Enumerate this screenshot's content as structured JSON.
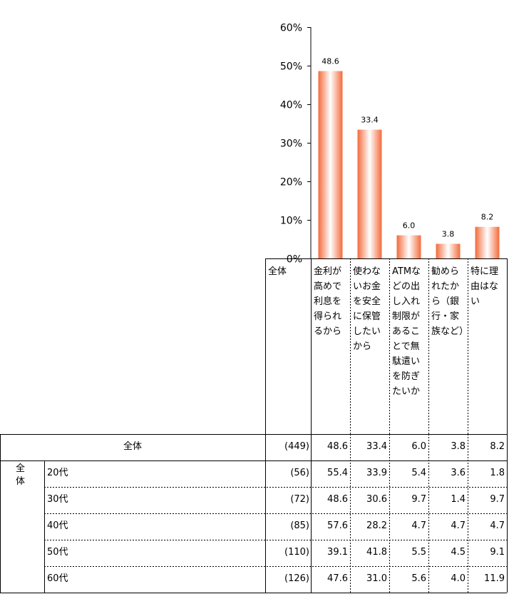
{
  "chart_data": {
    "type": "bar",
    "ylim": [
      0,
      60
    ],
    "y_ticks": [
      "0%",
      "10%",
      "20%",
      "30%",
      "40%",
      "50%",
      "60%"
    ],
    "total_label": "全体",
    "categories": [
      "金利が高めで利息を得られるから",
      "使わないお金を安全に保管したいから",
      "ATMなどの出し入れ制限があることで無駄遣いを防ぎたいか",
      "勧められたから（銀行・家族など）",
      "特に理由はない"
    ],
    "values": [
      48.6,
      33.4,
      6.0,
      3.8,
      8.2
    ],
    "value_labels": [
      "48.6",
      "33.4",
      "6.0",
      "3.8",
      "8.2"
    ],
    "bar_color": "#f36b3b",
    "grid": false
  },
  "table": {
    "total_row": {
      "label": "全体",
      "n": "(449)",
      "values": [
        "48.6",
        "33.4",
        "6.0",
        "3.8",
        "8.2"
      ]
    },
    "group_label": "全体",
    "rows": [
      {
        "label": "20代",
        "n": "(56)",
        "values": [
          "55.4",
          "33.9",
          "5.4",
          "3.6",
          "1.8"
        ]
      },
      {
        "label": "30代",
        "n": "(72)",
        "values": [
          "48.6",
          "30.6",
          "9.7",
          "1.4",
          "9.7"
        ]
      },
      {
        "label": "40代",
        "n": "(85)",
        "values": [
          "57.6",
          "28.2",
          "4.7",
          "4.7",
          "4.7"
        ]
      },
      {
        "label": "50代",
        "n": "(110)",
        "values": [
          "39.1",
          "41.8",
          "5.5",
          "4.5",
          "9.1"
        ]
      },
      {
        "label": "60代",
        "n": "(126)",
        "values": [
          "47.6",
          "31.0",
          "5.6",
          "4.0",
          "11.9"
        ]
      }
    ]
  }
}
